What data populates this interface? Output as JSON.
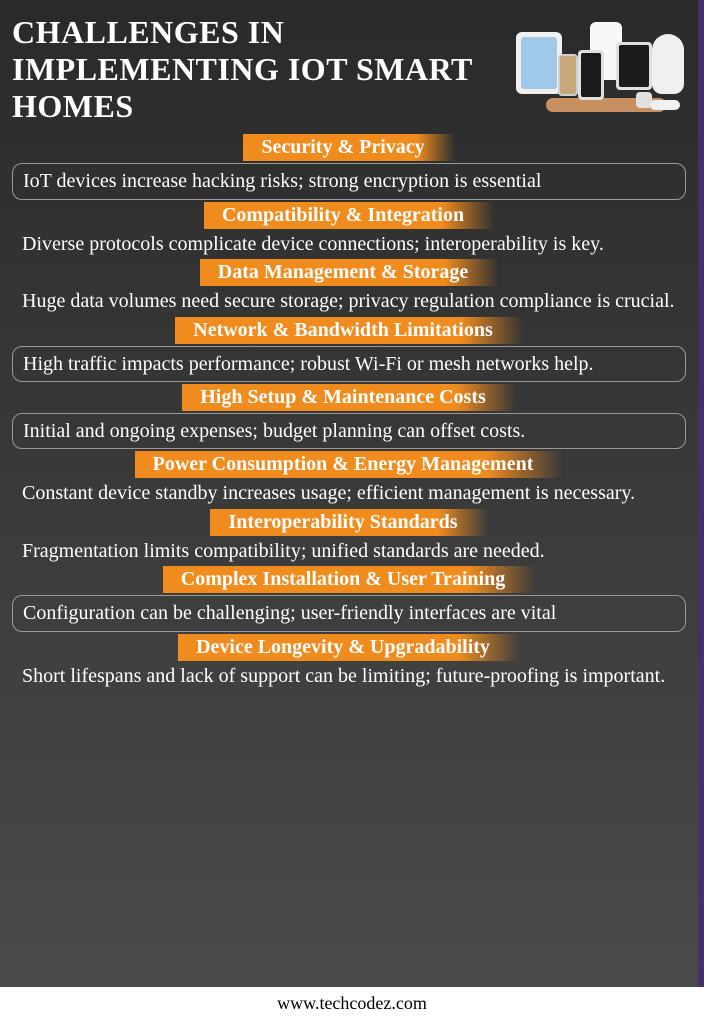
{
  "title": "CHALLENGES IN IMPLEMENTING IOT SMART HOMES",
  "footer_url": "www.techcodez.com",
  "chip_bg": "#f08c1e",
  "chip_text_color": "#ffffff",
  "panel_bg_top": "#2a2a2a",
  "panel_bg_bottom": "#4a4a4a",
  "border_color": "#9a9a9a",
  "accent_border": "#4a2d6b",
  "title_fontsize": 32,
  "chip_fontsize": 20,
  "desc_fontsize": 20,
  "items": [
    {
      "heading": "Security & Privacy",
      "desc": "IoT devices increase hacking risks; strong encryption is essential",
      "boxed": true
    },
    {
      "heading": "Compatibility & Integration",
      "desc": "Diverse protocols complicate device connections; interoperability is key.",
      "boxed": false
    },
    {
      "heading": "Data Management & Storage",
      "desc": "Huge data volumes need secure storage; privacy regulation compliance is crucial.",
      "boxed": false
    },
    {
      "heading": "Network & Bandwidth Limitations",
      "desc": "High traffic impacts performance; robust Wi-Fi or mesh networks help.",
      "boxed": true
    },
    {
      "heading": "High Setup & Maintenance Costs",
      "desc": "Initial and ongoing expenses; budget planning can offset costs.",
      "boxed": true
    },
    {
      "heading": "Power Consumption & Energy Management",
      "desc": "Constant device standby increases usage; efficient management is necessary.",
      "boxed": false
    },
    {
      "heading": "Interoperability Standards",
      "desc": "Fragmentation limits compatibility; unified standards are needed.",
      "boxed": false
    },
    {
      "heading": "Complex Installation & User Training",
      "desc": "Configuration can be challenging; user-friendly interfaces are vital",
      "boxed": true
    },
    {
      "heading": "Device Longevity & Upgradability",
      "desc": "Short lifespans and lack of support can be limiting; future-proofing is important.",
      "boxed": false
    }
  ]
}
